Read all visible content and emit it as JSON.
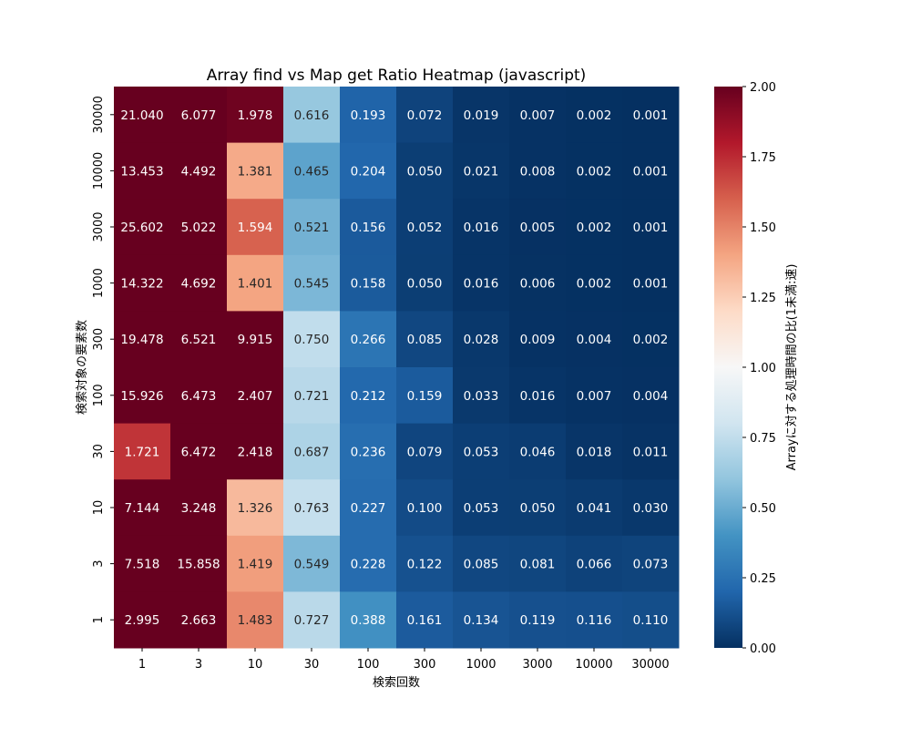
{
  "chart_data": {
    "type": "heatmap",
    "title": "Array find vs Map get Ratio Heatmap (javascript)",
    "xlabel": "検索回数",
    "ylabel": "検索対象の要素数",
    "x_categories": [
      "1",
      "3",
      "10",
      "30",
      "100",
      "300",
      "1000",
      "3000",
      "10000",
      "30000"
    ],
    "y_categories": [
      "30000",
      "10000",
      "3000",
      "1000",
      "300",
      "100",
      "30",
      "10",
      "3",
      "1"
    ],
    "values": [
      [
        21.04,
        6.077,
        1.978,
        0.616,
        0.193,
        0.072,
        0.019,
        0.007,
        0.002,
        0.001
      ],
      [
        13.453,
        4.492,
        1.381,
        0.465,
        0.204,
        0.05,
        0.021,
        0.008,
        0.002,
        0.001
      ],
      [
        25.602,
        5.022,
        1.594,
        0.521,
        0.156,
        0.052,
        0.016,
        0.005,
        0.002,
        0.001
      ],
      [
        14.322,
        4.692,
        1.401,
        0.545,
        0.158,
        0.05,
        0.016,
        0.006,
        0.002,
        0.001
      ],
      [
        19.478,
        6.521,
        9.915,
        0.75,
        0.266,
        0.085,
        0.028,
        0.009,
        0.004,
        0.002
      ],
      [
        15.926,
        6.473,
        2.407,
        0.721,
        0.212,
        0.159,
        0.033,
        0.016,
        0.007,
        0.004
      ],
      [
        1.721,
        6.472,
        2.418,
        0.687,
        0.236,
        0.079,
        0.053,
        0.046,
        0.018,
        0.011
      ],
      [
        7.144,
        3.248,
        1.326,
        0.763,
        0.227,
        0.1,
        0.053,
        0.05,
        0.041,
        0.03
      ],
      [
        7.518,
        15.858,
        1.419,
        0.549,
        0.228,
        0.122,
        0.085,
        0.081,
        0.066,
        0.073
      ],
      [
        2.995,
        2.663,
        1.483,
        0.727,
        0.388,
        0.161,
        0.134,
        0.119,
        0.116,
        0.11
      ]
    ],
    "value_format": "3 decimals",
    "colormap": "RdBu_r",
    "colormap_stops": [
      "#053061",
      "#2166ac",
      "#4393c3",
      "#92c5de",
      "#d1e5f0",
      "#f7f7f7",
      "#fddbc7",
      "#f4a582",
      "#d6604d",
      "#b2182b",
      "#67001f"
    ],
    "colorbar": {
      "label": "Arrayに対する処理時間の比(1未満:速)",
      "range": [
        0,
        2
      ],
      "ticks": [
        "0.00",
        "0.25",
        "0.50",
        "0.75",
        "1.00",
        "1.25",
        "1.50",
        "1.75",
        "2.00"
      ]
    }
  }
}
